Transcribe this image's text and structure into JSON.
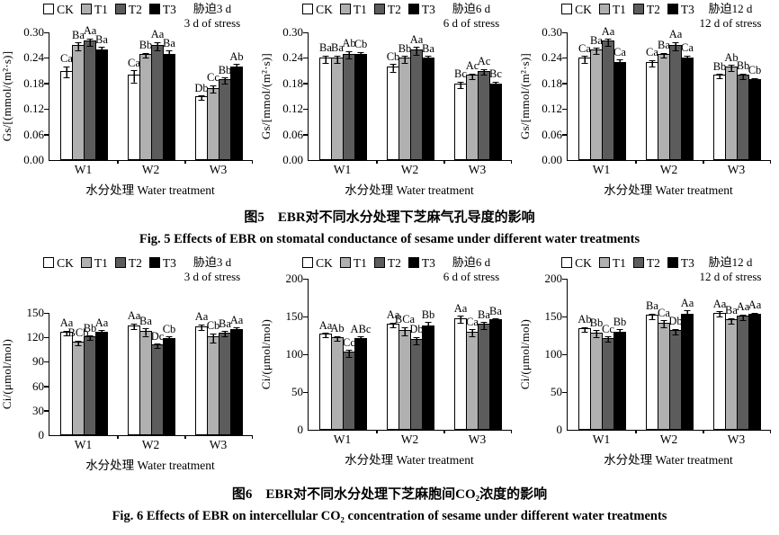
{
  "legend": {
    "items": [
      {
        "label": "CK",
        "color": "#ffffff"
      },
      {
        "label": "T1",
        "color": "#b0b0b0"
      },
      {
        "label": "T2",
        "color": "#5c5c5c"
      },
      {
        "label": "T3",
        "color": "#000000"
      }
    ]
  },
  "captions": [
    {
      "zh": "图5　EBR对不同水分处理下芝麻气孔导度的影响",
      "en": "Fig. 5   Effects of EBR on stomatal conductance of sesame under different water treatments"
    },
    {
      "zh": "图6　EBR对不同水分处理下芝麻胞间CO₂浓度的影响",
      "en": "Fig. 6   Effects of EBR on intercellular CO₂ concentration of sesame under different water treatments"
    }
  ],
  "chart_data": [
    {
      "type": "bar",
      "id": "gs-3d",
      "ylabel": "Gs/[(mmol/(m²·s)]",
      "xlabel": "水分处理 Water treatment",
      "annotation_zh": "胁迫3 d",
      "annotation_en": "3 d of stress",
      "categories": [
        "W1",
        "W2",
        "W3"
      ],
      "ylim": [
        0,
        0.3
      ],
      "yticks": [
        "0.00",
        "0.06",
        "0.12",
        "0.18",
        "0.24",
        "0.30"
      ],
      "series": [
        {
          "name": "CK",
          "values": [
            0.21,
            0.2,
            0.15
          ],
          "errors": [
            0.012,
            0.013,
            0.003
          ],
          "labels": [
            "Ca",
            "Ca",
            "Db"
          ]
        },
        {
          "name": "T1",
          "values": [
            0.27,
            0.25,
            0.17
          ],
          "errors": [
            0.008,
            0.004,
            0.008
          ],
          "labels": [
            "Ba",
            "Bb",
            "Cc"
          ]
        },
        {
          "name": "T2",
          "values": [
            0.28,
            0.27,
            0.19
          ],
          "errors": [
            0.008,
            0.009,
            0.006
          ],
          "labels": [
            "Aa",
            "Aa",
            "Bb"
          ]
        },
        {
          "name": "T3",
          "values": [
            0.26,
            0.25,
            0.22
          ],
          "errors": [
            0.008,
            0.009,
            0.008
          ],
          "labels": [
            "Ba",
            "Ba",
            "Ab"
          ]
        }
      ]
    },
    {
      "type": "bar",
      "id": "gs-6d",
      "ylabel": "Gs/[mmol/(m²·s)]",
      "xlabel": "水分处理 Water treatment",
      "annotation_zh": "胁迫6 d",
      "annotation_en": "6 d of stress",
      "categories": [
        "W1",
        "W2",
        "W3"
      ],
      "ylim": [
        0,
        0.3
      ],
      "yticks": [
        "0.00",
        "0.06",
        "0.12",
        "0.18",
        "0.24",
        "0.30"
      ],
      "series": [
        {
          "name": "CK",
          "values": [
            0.24,
            0.22,
            0.18
          ],
          "errors": [
            0.008,
            0.008,
            0.007
          ],
          "labels": [
            "Ba",
            "Cb",
            "Bc"
          ]
        },
        {
          "name": "T1",
          "values": [
            0.24,
            0.24,
            0.2
          ],
          "errors": [
            0.008,
            0.007,
            0.006
          ],
          "labels": [
            "Ba",
            "Bb",
            "Ac"
          ]
        },
        {
          "name": "T2",
          "values": [
            0.25,
            0.26,
            0.21
          ],
          "errors": [
            0.008,
            0.008,
            0.006
          ],
          "labels": [
            "Ab",
            "Aa",
            "Ac"
          ]
        },
        {
          "name": "T3",
          "values": [
            0.25,
            0.24,
            0.18
          ],
          "errors": [
            0.006,
            0.007,
            0.007
          ],
          "labels": [
            "Cb",
            "Ba",
            "Bc"
          ]
        }
      ]
    },
    {
      "type": "bar",
      "id": "gs-12d",
      "ylabel": "Gs/[mmol/(m²·s)]",
      "xlabel": "水分处理 Water treatment",
      "annotation_zh": "胁迫12 d",
      "annotation_en": "12 d of stress",
      "categories": [
        "W1",
        "W2",
        "W3"
      ],
      "ylim": [
        0,
        0.3
      ],
      "yticks": [
        "0.00",
        "0.06",
        "0.12",
        "0.18",
        "0.24",
        "0.30"
      ],
      "series": [
        {
          "name": "CK",
          "values": [
            0.24,
            0.23,
            0.2
          ],
          "errors": [
            0.007,
            0.007,
            0.004
          ],
          "labels": [
            "Ca",
            "Ca",
            "Bb"
          ]
        },
        {
          "name": "T1",
          "values": [
            0.26,
            0.25,
            0.22
          ],
          "errors": [
            0.006,
            0.004,
            0.006
          ],
          "labels": [
            "Ba",
            "Ba",
            "Ab"
          ]
        },
        {
          "name": "T2",
          "values": [
            0.28,
            0.27,
            0.2
          ],
          "errors": [
            0.007,
            0.009,
            0.005
          ],
          "labels": [
            "Aa",
            "Aa",
            "Bb"
          ]
        },
        {
          "name": "T3",
          "values": [
            0.23,
            0.24,
            0.19
          ],
          "errors": [
            0.008,
            0.008,
            0.005
          ],
          "labels": [
            "Ca",
            "Ca",
            "Cb"
          ]
        }
      ]
    },
    {
      "type": "bar",
      "id": "ci-3d",
      "ylabel": "Ci/(μmol/mol)",
      "xlabel": "水分处理 Water treatment",
      "annotation_zh": "胁迫3 d",
      "annotation_en": "3 d of stress",
      "categories": [
        "W1",
        "W2",
        "W3"
      ],
      "ylim": [
        0,
        150
      ],
      "yticks": [
        "0",
        "30",
        "60",
        "90",
        "120",
        "150"
      ],
      "series": [
        {
          "name": "CK",
          "values": [
            127,
            135,
            134
          ],
          "errors": [
            1.5,
            3,
            3
          ],
          "labels": [
            "Aa",
            "Aa",
            "Aa"
          ]
        },
        {
          "name": "T1",
          "values": [
            115,
            128,
            121
          ],
          "errors": [
            2,
            4,
            5
          ],
          "labels": [
            "BCb",
            "Ba",
            "Cb"
          ]
        },
        {
          "name": "T2",
          "values": [
            121,
            111,
            126
          ],
          "errors": [
            2,
            2,
            3
          ],
          "labels": [
            "Bb",
            "Dc",
            "Ba"
          ]
        },
        {
          "name": "T3",
          "values": [
            127,
            119,
            130
          ],
          "errors": [
            3,
            3,
            3
          ],
          "labels": [
            "Aa",
            "Cb",
            "Aa"
          ]
        }
      ]
    },
    {
      "type": "bar",
      "id": "ci-6d",
      "ylabel": "Ci/(μmol/mol)",
      "xlabel": "水分处理 Water treatment",
      "annotation_zh": "胁迫6 d",
      "annotation_en": "6 d of stress",
      "categories": [
        "W1",
        "W2",
        "W3"
      ],
      "ylim": [
        0,
        200
      ],
      "yticks": [
        "0",
        "50",
        "100",
        "150",
        "200"
      ],
      "series": [
        {
          "name": "CK",
          "values": [
            127,
            141,
            148
          ],
          "errors": [
            2,
            2,
            4
          ],
          "labels": [
            "Aa",
            "Aa",
            "Aa"
          ]
        },
        {
          "name": "T1",
          "values": [
            123,
            132,
            130
          ],
          "errors": [
            2,
            5,
            4
          ],
          "labels": [
            "Ab",
            "BCa",
            "Ca"
          ]
        },
        {
          "name": "T2",
          "values": [
            103,
            120,
            140
          ],
          "errors": [
            4,
            4,
            4
          ],
          "labels": [
            "Cc",
            "Db",
            "Ba"
          ]
        },
        {
          "name": "T3",
          "values": [
            121,
            138,
            146
          ],
          "errors": [
            4,
            6,
            2
          ],
          "labels": [
            "ABc",
            "Bb",
            "Ba"
          ]
        }
      ]
    },
    {
      "type": "bar",
      "id": "ci-12d",
      "ylabel": "Ci/(μmol/mol)",
      "xlabel": "水分处理 Water treatment",
      "annotation_zh": "胁迫12 d",
      "annotation_en": "12 d of stress",
      "categories": [
        "W1",
        "W2",
        "W3"
      ],
      "ylim": [
        0,
        200
      ],
      "yticks": [
        "0",
        "50",
        "100",
        "150",
        "200"
      ],
      "series": [
        {
          "name": "CK",
          "values": [
            135,
            152,
            155
          ],
          "errors": [
            2,
            3,
            3
          ],
          "labels": [
            "Ab",
            "Ba",
            "Aa"
          ]
        },
        {
          "name": "T1",
          "values": [
            129,
            142,
            146
          ],
          "errors": [
            4,
            4,
            3
          ],
          "labels": [
            "Bb",
            "Ca",
            "Ba"
          ]
        },
        {
          "name": "T2",
          "values": [
            122,
            132,
            151
          ],
          "errors": [
            3,
            3,
            3
          ],
          "labels": [
            "Cc",
            "Db",
            "Aa"
          ]
        },
        {
          "name": "T3",
          "values": [
            130,
            154,
            153
          ],
          "errors": [
            4,
            5,
            3
          ],
          "labels": [
            "Bb",
            "Aa",
            "Aa"
          ]
        }
      ]
    }
  ]
}
